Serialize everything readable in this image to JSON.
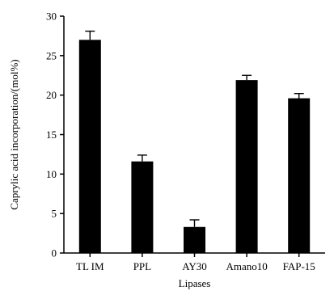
{
  "chart_data": {
    "type": "bar",
    "categories": [
      "TL IM",
      "PPL",
      "AY30",
      "Amano10",
      "FAP-15"
    ],
    "values": [
      27.0,
      11.6,
      3.3,
      21.9,
      19.6
    ],
    "errors": [
      1.1,
      0.8,
      0.9,
      0.6,
      0.6
    ],
    "title": "",
    "xlabel": "Lipases",
    "ylabel": "Caprylic acid incorporation/(mol%)",
    "ylim": [
      0,
      30
    ],
    "yticks": [
      0,
      5,
      10,
      15,
      20,
      25,
      30
    ],
    "ytick_labels": [
      "0",
      "5",
      "10",
      "15",
      "20",
      "25",
      "30"
    ],
    "bar_color": "#000000",
    "grid": false,
    "legend": "none"
  }
}
